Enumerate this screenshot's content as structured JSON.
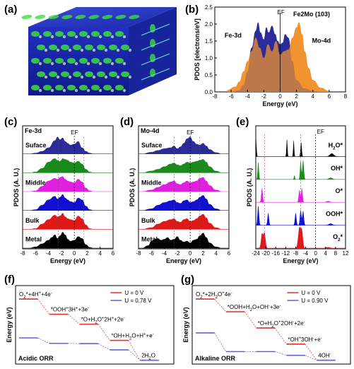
{
  "panels": {
    "a": {
      "letter": "(a)"
    },
    "b": {
      "letter": "(b)"
    },
    "c": {
      "letter": "(c)"
    },
    "d": {
      "letter": "(d)"
    },
    "e": {
      "letter": "(e)"
    },
    "f": {
      "letter": "(f)"
    },
    "g": {
      "letter": "(g)"
    }
  },
  "colors": {
    "fe": "#2b2b9a",
    "mo": "#f0922c",
    "black": "#000000",
    "green": "#1a8a1a",
    "magenta": "#e020e0",
    "blue": "#1010d0",
    "red": "#e01818",
    "u0": "#e03030",
    "u1": "#6060e0"
  },
  "chart_data": [
    {
      "id": "b",
      "type": "area",
      "title": "Fe2Mo (103)",
      "xlabel": "Energy (eV)",
      "ylabel": "PDOS [electrons/eV]",
      "xlim": [
        -8,
        8
      ],
      "ylim": [
        0,
        2.5
      ],
      "xticks": [
        -8,
        -6,
        -4,
        -2,
        0,
        2,
        4,
        6,
        8
      ],
      "yticks": [
        0.0,
        0.5,
        1.0,
        1.5,
        2.0,
        2.5
      ],
      "yticklabels": [
        "0.0",
        "0.5",
        "1.0",
        "1.5",
        "2.0",
        "2.5"
      ],
      "marker_label": "EF",
      "series": [
        {
          "name": "Fe-3d",
          "x": [
            -6,
            -5,
            -4.5,
            -4,
            -3.5,
            -3,
            -2.7,
            -2.4,
            -2,
            -1.7,
            -1.4,
            -1,
            -0.6,
            -0.3,
            0,
            0.3,
            0.6,
            1,
            1.5,
            2,
            3,
            4,
            5
          ],
          "values": [
            0,
            0.05,
            0.2,
            0.6,
            1.3,
            1.8,
            2.05,
            1.75,
            1.55,
            1.9,
            1.75,
            1.95,
            1.7,
            1.5,
            1.4,
            1.45,
            1.7,
            1.6,
            0.9,
            0.35,
            0.1,
            0.03,
            0
          ]
        },
        {
          "name": "Mo-4d",
          "x": [
            -6.5,
            -5.5,
            -5,
            -4.5,
            -4,
            -3.5,
            -3,
            -2.5,
            -2,
            -1.5,
            -1,
            -0.5,
            0,
            0.5,
            1,
            1.5,
            2,
            2.3,
            2.7,
            3,
            3.5,
            4,
            5,
            6
          ],
          "values": [
            0.05,
            0.15,
            0.3,
            0.6,
            0.9,
            1.2,
            1.6,
            1.3,
            1.0,
            1.4,
            1.2,
            1.5,
            1.1,
            1.2,
            1.25,
            1.6,
            1.9,
            2.05,
            1.7,
            1.2,
            0.7,
            0.35,
            0.12,
            0.03
          ]
        }
      ]
    },
    {
      "id": "c",
      "type": "area",
      "title": "Fe-3d",
      "xlabel": "Energy (eV)",
      "ylabel": "PDOS (A. U.)",
      "xlim": [
        -8,
        6
      ],
      "xticks": [
        -8,
        -6,
        -4,
        -2,
        0,
        2,
        4,
        6
      ],
      "marker_label": "EF",
      "series": [
        {
          "name": "Suface",
          "color": "#2b2b9a",
          "x": [
            -7,
            -6,
            -5,
            -4,
            -3,
            -2.6,
            -2.2,
            -1.8,
            -1.4,
            -1,
            -0.6,
            0,
            0.6,
            1.2,
            1.8,
            2.4,
            3
          ],
          "values": [
            0,
            0.05,
            0.15,
            0.35,
            0.75,
            0.95,
            0.8,
            0.9,
            0.7,
            0.6,
            0.5,
            0.55,
            0.7,
            0.35,
            0.15,
            0.05,
            0
          ]
        },
        {
          "name": "",
          "color": "#1a8a1a",
          "x": [
            -7,
            -6,
            -5,
            -4,
            -3,
            -2.6,
            -2.2,
            -1.8,
            -1.4,
            -1,
            -0.6,
            0,
            0.6,
            1.2,
            1.8,
            2.4,
            3
          ],
          "values": [
            0,
            0.05,
            0.25,
            0.6,
            0.8,
            0.7,
            0.65,
            0.8,
            0.75,
            0.7,
            0.6,
            0.55,
            0.65,
            0.5,
            0.2,
            0.05,
            0
          ]
        },
        {
          "name": "Middle",
          "color": "#e020e0",
          "x": [
            -7,
            -6,
            -5,
            -4,
            -3,
            -2.6,
            -2.2,
            -1.8,
            -1.4,
            -1,
            -0.6,
            0,
            0.6,
            1.2,
            1.8,
            2.4,
            3
          ],
          "values": [
            0,
            0.05,
            0.3,
            0.6,
            0.75,
            0.7,
            0.8,
            0.85,
            0.7,
            0.6,
            0.55,
            0.5,
            0.7,
            0.55,
            0.2,
            0.05,
            0
          ]
        },
        {
          "name": "",
          "color": "#1010d0",
          "x": [
            -7,
            -6,
            -5,
            -4,
            -3,
            -2.6,
            -2.2,
            -1.8,
            -1.4,
            -1,
            -0.6,
            0,
            0.6,
            1.2,
            1.8,
            2.4,
            3
          ],
          "values": [
            0,
            0.05,
            0.3,
            0.6,
            0.8,
            0.65,
            0.75,
            0.9,
            0.7,
            0.6,
            0.5,
            0.45,
            0.7,
            0.6,
            0.25,
            0.05,
            0
          ]
        },
        {
          "name": "Bulk",
          "color": "#e01818",
          "x": [
            -7,
            -6,
            -5,
            -4,
            -3,
            -2.6,
            -2.2,
            -1.8,
            -1.4,
            -1,
            -0.6,
            0,
            0.6,
            1.2,
            1.8,
            2.4,
            3
          ],
          "values": [
            0,
            0.05,
            0.3,
            0.55,
            0.8,
            0.7,
            0.75,
            0.9,
            0.7,
            0.6,
            0.55,
            0.5,
            0.75,
            0.6,
            0.25,
            0.05,
            0
          ]
        },
        {
          "name": "Metal",
          "color": "#000000",
          "x": [
            -7,
            -6,
            -5,
            -4,
            -3.5,
            -3,
            -2.6,
            -2.2,
            -1.8,
            -1.4,
            -1,
            -0.6,
            0,
            0.6,
            1.2,
            1.8,
            2.4,
            3
          ],
          "values": [
            0,
            0.08,
            0.25,
            0.45,
            0.6,
            0.75,
            0.55,
            0.7,
            0.9,
            0.75,
            0.5,
            0.4,
            0.45,
            0.65,
            0.55,
            0.2,
            0.05,
            0
          ]
        }
      ]
    },
    {
      "id": "d",
      "type": "area",
      "title": "Mo-4d",
      "xlabel": "Energy (eV)",
      "ylabel": "PDOS (A. U.)",
      "xlim": [
        -8,
        6
      ],
      "xticks": [
        -8,
        -6,
        -4,
        -2,
        0,
        2,
        4,
        6
      ],
      "marker_label": "EF",
      "series": [
        {
          "name": "Suface",
          "color": "#2b2b9a",
          "x": [
            -7.5,
            -6,
            -5,
            -4,
            -3,
            -2.5,
            -2,
            -1.5,
            -1,
            -0.5,
            0,
            0.5,
            1,
            1.5,
            2,
            2.5,
            3,
            4,
            5
          ],
          "values": [
            0,
            0.1,
            0.2,
            0.3,
            0.35,
            0.45,
            0.3,
            0.4,
            0.6,
            0.85,
            0.95,
            0.7,
            0.55,
            0.5,
            0.6,
            0.45,
            0.25,
            0.08,
            0
          ]
        },
        {
          "name": "",
          "color": "#1a8a1a",
          "x": [
            -7.5,
            -6,
            -5,
            -4,
            -3,
            -2.5,
            -2,
            -1.5,
            -1,
            -0.5,
            0,
            0.5,
            1,
            1.5,
            2,
            2.5,
            3,
            4,
            5
          ],
          "values": [
            0,
            0.1,
            0.2,
            0.35,
            0.5,
            0.55,
            0.45,
            0.4,
            0.5,
            0.6,
            0.55,
            0.6,
            0.65,
            0.7,
            0.75,
            0.6,
            0.35,
            0.1,
            0
          ]
        },
        {
          "name": "Middle",
          "color": "#e020e0",
          "x": [
            -7.5,
            -6,
            -5,
            -4,
            -3,
            -2.5,
            -2,
            -1.5,
            -1,
            -0.5,
            0,
            0.5,
            1,
            1.5,
            2,
            2.5,
            3,
            4,
            5
          ],
          "values": [
            0,
            0.1,
            0.25,
            0.4,
            0.55,
            0.6,
            0.45,
            0.4,
            0.5,
            0.6,
            0.5,
            0.55,
            0.6,
            0.75,
            0.8,
            0.6,
            0.35,
            0.1,
            0
          ]
        },
        {
          "name": "",
          "color": "#1010d0",
          "x": [
            -7.5,
            -6,
            -5,
            -4,
            -3,
            -2.5,
            -2,
            -1.5,
            -1,
            -0.5,
            0,
            0.5,
            1,
            1.5,
            2,
            2.5,
            3,
            4,
            5
          ],
          "values": [
            0,
            0.1,
            0.3,
            0.45,
            0.55,
            0.6,
            0.45,
            0.4,
            0.55,
            0.6,
            0.45,
            0.5,
            0.6,
            0.75,
            0.85,
            0.65,
            0.35,
            0.1,
            0
          ]
        },
        {
          "name": "Bulk",
          "color": "#e01818",
          "x": [
            -7.5,
            -6,
            -5,
            -4,
            -3,
            -2.5,
            -2,
            -1.5,
            -1,
            -0.5,
            0,
            0.5,
            1,
            1.5,
            2,
            2.5,
            3,
            4,
            5
          ],
          "values": [
            0,
            0.1,
            0.3,
            0.45,
            0.55,
            0.6,
            0.45,
            0.4,
            0.55,
            0.6,
            0.45,
            0.5,
            0.6,
            0.75,
            0.85,
            0.65,
            0.35,
            0.1,
            0
          ]
        },
        {
          "name": "Metal",
          "color": "#000000",
          "x": [
            -7.5,
            -6.5,
            -6,
            -5.5,
            -5,
            -4.5,
            -4,
            -3.5,
            -3,
            -2.5,
            -2,
            -1.5,
            -1,
            -0.5,
            0,
            0.5,
            1,
            1.5,
            2,
            2.5,
            3,
            4,
            5
          ],
          "values": [
            0,
            0.15,
            0.4,
            0.5,
            0.55,
            0.45,
            0.5,
            0.6,
            0.45,
            0.5,
            0.65,
            0.45,
            0.35,
            0.4,
            0.3,
            0.45,
            0.5,
            0.7,
            0.85,
            0.6,
            0.3,
            0.08,
            0
          ]
        }
      ]
    },
    {
      "id": "e",
      "type": "area",
      "xlabel": "Energy (eV)",
      "ylabel": "PDOS (A. U.)",
      "xlim": [
        -24,
        12
      ],
      "xticks": [
        -24,
        -20,
        -16,
        -12,
        -8,
        -4,
        0,
        4,
        8,
        12
      ],
      "marker_label": "EF",
      "series": [
        {
          "name": "H2O*",
          "color": "#000000",
          "peaks": [
            [
              -24,
              0.25,
              1.0
            ],
            [
              -11.5,
              0.2,
              0.85
            ],
            [
              -8.8,
              0.2,
              0.8
            ],
            [
              -5.8,
              0.25,
              0.7
            ],
            [
              6.5,
              0.8,
              0.15
            ]
          ]
        },
        {
          "name": "OH*",
          "color": "#1a8a1a",
          "peaks": [
            [
              -23,
              0.25,
              0.85
            ],
            [
              -8.5,
              0.2,
              0.2
            ],
            [
              -6,
              0.25,
              0.9
            ],
            [
              -5,
              0.3,
              0.95
            ],
            [
              6,
              0.8,
              0.08
            ]
          ]
        },
        {
          "name": "O*",
          "color": "#e020e0",
          "peaks": [
            [
              -21.5,
              0.3,
              0.7
            ],
            [
              -6.5,
              0.3,
              0.6
            ],
            [
              -5.5,
              0.3,
              0.7
            ],
            [
              5,
              0.8,
              0.06
            ]
          ]
        },
        {
          "name": "OOH*",
          "color": "#1010d0",
          "peaks": [
            [
              -23,
              0.3,
              0.95
            ],
            [
              -19,
              0.3,
              0.6
            ],
            [
              -8,
              0.3,
              0.6
            ],
            [
              -6,
              0.3,
              0.75
            ],
            [
              -5,
              0.3,
              0.7
            ],
            [
              6,
              0.8,
              0.08
            ]
          ]
        },
        {
          "name": "O2*",
          "color": "#e01818",
          "peaks": [
            [
              -21.5,
              0.4,
              0.7
            ],
            [
              -20.5,
              0.4,
              0.75
            ],
            [
              -6.5,
              0.5,
              1.0
            ],
            [
              -5.5,
              0.4,
              0.8
            ],
            [
              5,
              0.8,
              0.05
            ]
          ]
        }
      ]
    },
    {
      "id": "f",
      "type": "line",
      "title": "Acidic ORR",
      "ylabel": "Energy (eV)",
      "legend": [
        "U = 0 V",
        "U = 0.78 V"
      ],
      "step_labels": [
        "O2*+4H++4e-",
        "*OOH+3H++3e-",
        "*O+H2O+2H++2e-",
        "*OH+H2O+H++e-",
        "2H2O"
      ],
      "series": [
        {
          "name": "U = 0 V",
          "values": [
            4.92,
            3.7,
            2.9,
            1.6,
            0
          ]
        },
        {
          "name": "U = 0.78 V",
          "values": [
            1.8,
            1.36,
            1.34,
            0.84,
            0
          ]
        }
      ],
      "ylim": [
        -0.3,
        6.0
      ]
    },
    {
      "id": "g",
      "type": "line",
      "title": "Alkaline ORR",
      "ylabel": "Energy (eV)",
      "legend": [
        "U = 0 V",
        "U = 0.90 V"
      ],
      "step_labels": [
        "O2*+2H2O+4e-",
        "*OOH+H2O+OH-+3e-",
        "*O+H2O+2OH-+2e-",
        "*OH+3OH-+e-",
        "4OH-"
      ],
      "series": [
        {
          "name": "U = 0 V",
          "values": [
            4.92,
            3.9,
            2.6,
            1.3,
            0
          ]
        },
        {
          "name": "U = 0.90 V",
          "values": [
            2.2,
            0.7,
            0.7,
            0.4,
            0
          ]
        }
      ],
      "ylim": [
        -0.3,
        6.0
      ]
    }
  ]
}
